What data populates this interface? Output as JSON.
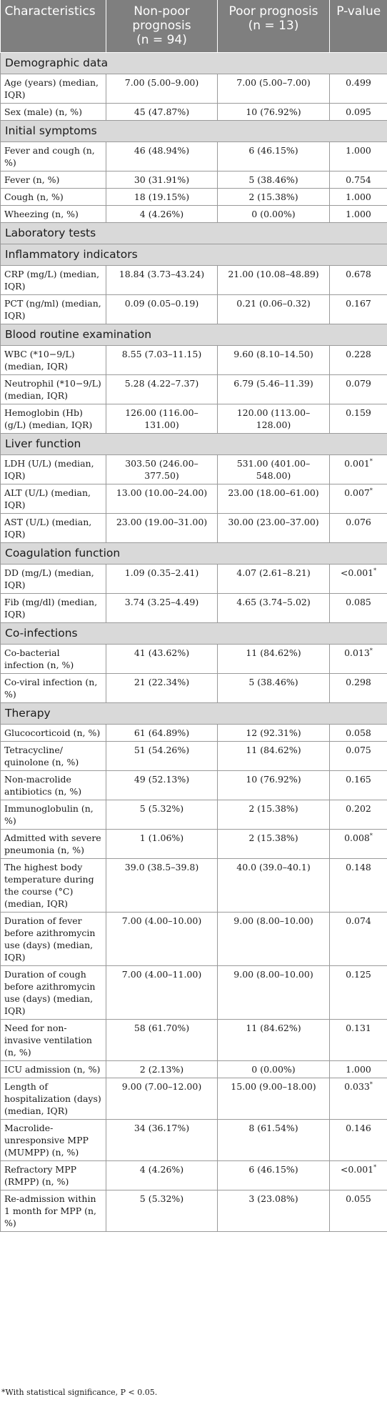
{
  "header": {
    "col1": "Characteristics",
    "col2_line1": "Non-poor",
    "col2_line2": "prognosis",
    "col2_line3": "(n = 94)",
    "col3_line1": "Poor prognosis",
    "col3_line2": "(n = 13)",
    "col4": "P-value"
  },
  "sections": [
    {
      "title": "Demographic data",
      "rows": [
        {
          "label": "Age (years) (median, IQR)",
          "non_poor": "7.00 (5.00–9.00)",
          "poor": "7.00 (5.00–7.00)",
          "p": "0.499",
          "sig": ""
        },
        {
          "label": "Sex (male) (n, %)",
          "non_poor": "45 (47.87%)",
          "poor": "10 (76.92%)",
          "p": "0.095",
          "sig": ""
        }
      ]
    },
    {
      "title": "Initial symptoms",
      "rows": [
        {
          "label": "Fever and cough (n, %)",
          "non_poor": "46 (48.94%)",
          "poor": "6 (46.15%)",
          "p": "1.000",
          "sig": ""
        },
        {
          "label": "Fever (n, %)",
          "non_poor": "30 (31.91%)",
          "poor": "5 (38.46%)",
          "p": "0.754",
          "sig": ""
        },
        {
          "label": "Cough (n, %)",
          "non_poor": "18 (19.15%)",
          "poor": "2 (15.38%)",
          "p": "1.000",
          "sig": ""
        },
        {
          "label": "Wheezing (n, %)",
          "non_poor": "4 (4.26%)",
          "poor": "0 (0.00%)",
          "p": "1.000",
          "sig": ""
        }
      ]
    },
    {
      "title": "Laboratory tests",
      "rows": []
    },
    {
      "title": "Inflammatory indicators",
      "rows": [
        {
          "label": "CRP (mg/L) (median, IQR)",
          "non_poor": "18.84 (3.73–43.24)",
          "poor": "21.00 (10.08–48.89)",
          "p": "0.678",
          "sig": ""
        },
        {
          "label": "PCT (ng/ml) (median, IQR)",
          "non_poor": "0.09 (0.05–0.19)",
          "poor": "0.21 (0.06–0.32)",
          "p": "0.167",
          "sig": ""
        }
      ]
    },
    {
      "title": "Blood routine examination",
      "rows": [
        {
          "label": "WBC (*10−9/L) (median, IQR)",
          "non_poor": "8.55 (7.03–11.15)",
          "poor": "9.60 (8.10–14.50)",
          "p": "0.228",
          "sig": ""
        },
        {
          "label": "Neutrophil (*10−9/L) (median, IQR)",
          "non_poor": "5.28 (4.22–7.37)",
          "poor": "6.79 (5.46–11.39)",
          "p": "0.079",
          "sig": ""
        },
        {
          "label": "Hemoglobin (Hb) (g/L) (median, IQR)",
          "non_poor": "126.00 (116.00–131.00)",
          "poor": "120.00 (113.00–128.00)",
          "p": "0.159",
          "sig": ""
        }
      ]
    },
    {
      "title": "Liver function",
      "rows": [
        {
          "label": "LDH (U/L) (median, IQR)",
          "non_poor": "303.50 (246.00–377.50)",
          "poor": "531.00 (401.00–548.00)",
          "p": "0.001",
          "sig": "*"
        },
        {
          "label": "ALT (U/L) (median, IQR)",
          "non_poor": "13.00 (10.00–24.00)",
          "poor": "23.00 (18.00–61.00)",
          "p": "0.007",
          "sig": "*"
        },
        {
          "label": "AST (U/L) (median, IQR)",
          "non_poor": "23.00 (19.00–31.00)",
          "poor": "30.00 (23.00–37.00)",
          "p": "0.076",
          "sig": ""
        }
      ]
    },
    {
      "title": "Coagulation function",
      "rows": [
        {
          "label": "DD (mg/L) (median, IQR)",
          "non_poor": "1.09 (0.35–2.41)",
          "poor": "4.07 (2.61–8.21)",
          "p": "<0.001",
          "sig": "*"
        },
        {
          "label": "Fib (mg/dl) (median, IQR)",
          "non_poor": "3.74 (3.25–4.49)",
          "poor": "4.65 (3.74–5.02)",
          "p": "0.085",
          "sig": ""
        }
      ]
    },
    {
      "title": "Co-infections",
      "rows": [
        {
          "label": "Co-bacterial infection (n, %)",
          "non_poor": "41 (43.62%)",
          "poor": "11 (84.62%)",
          "p": "0.013",
          "sig": "*"
        },
        {
          "label": "Co-viral infection (n, %)",
          "non_poor": "21 (22.34%)",
          "poor": "5 (38.46%)",
          "p": "0.298",
          "sig": ""
        }
      ]
    },
    {
      "title": "Therapy",
      "rows": [
        {
          "label": "Glucocorticoid (n, %)",
          "non_poor": "61 (64.89%)",
          "poor": "12 (92.31%)",
          "p": "0.058",
          "sig": ""
        },
        {
          "label": "Tetracycline/ quinolone (n, %)",
          "non_poor": "51 (54.26%)",
          "poor": "11 (84.62%)",
          "p": "0.075",
          "sig": ""
        },
        {
          "label": "Non-macrolide antibiotics (n, %)",
          "non_poor": "49 (52.13%)",
          "poor": "10 (76.92%)",
          "p": "0.165",
          "sig": ""
        },
        {
          "label": "Immunoglobulin (n, %)",
          "non_poor": "5 (5.32%)",
          "poor": "2 (15.38%)",
          "p": "0.202",
          "sig": ""
        },
        {
          "label": "Admitted with severe pneumonia (n, %)",
          "non_poor": "1 (1.06%)",
          "poor": "2 (15.38%)",
          "p": "0.008",
          "sig": "*"
        },
        {
          "label": "The highest body temperature during the course (°C) (median, IQR)",
          "non_poor": "39.0 (38.5–39.8)",
          "poor": "40.0 (39.0–40.1)",
          "p": "0.148",
          "sig": ""
        },
        {
          "label": "Duration of fever before azithromycin use (days) (median, IQR)",
          "non_poor": "7.00 (4.00–10.00)",
          "poor": "9.00 (8.00–10.00)",
          "p": "0.074",
          "sig": ""
        },
        {
          "label": "Duration of cough before azithromycin use (days) (median, IQR)",
          "non_poor": "7.00 (4.00–11.00)",
          "poor": "9.00 (8.00–10.00)",
          "p": "0.125",
          "sig": ""
        },
        {
          "label": "Need for non-invasive ventilation (n, %)",
          "non_poor": "58 (61.70%)",
          "poor": "11 (84.62%)",
          "p": "0.131",
          "sig": ""
        },
        {
          "label": "ICU admission (n, %)",
          "non_poor": "2 (2.13%)",
          "poor": "0 (0.00%)",
          "p": "1.000",
          "sig": ""
        },
        {
          "label": "Length of hospitalization (days) (median, IQR)",
          "non_poor": "9.00 (7.00–12.00)",
          "poor": "15.00 (9.00–18.00)",
          "p": "0.033",
          "sig": "*"
        },
        {
          "label": "Macrolide-unresponsive MPP (MUMPP) (n, %)",
          "non_poor": "34 (36.17%)",
          "poor": "8 (61.54%)",
          "p": "0.146",
          "sig": ""
        },
        {
          "label": "Refractory MPP (RMPP) (n, %)",
          "non_poor": "4 (4.26%)",
          "poor": "6 (46.15%)",
          "p": "<0.001",
          "sig": "*"
        },
        {
          "label": "Re-admission within 1 month for MPP (n, %)",
          "non_poor": "5 (5.32%)",
          "poor": "3 (23.08%)",
          "p": "0.055",
          "sig": ""
        }
      ]
    }
  ],
  "footnote": "*With statistical significance, P < 0.05."
}
